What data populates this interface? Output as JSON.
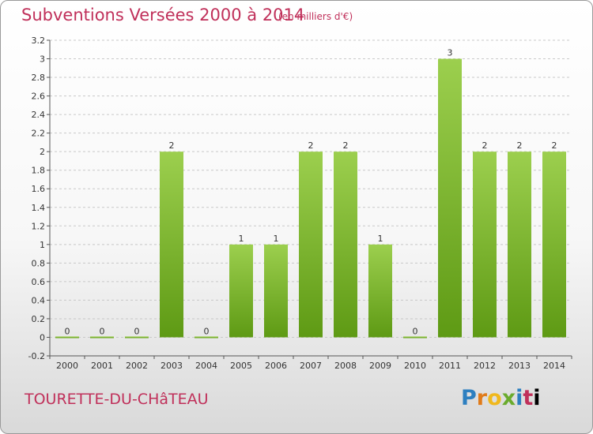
{
  "header": {
    "title": "Subventions Versées 2000 à 2014",
    "unit": "(en milliers d'€)"
  },
  "footer": {
    "commune": "TOURETTE-DU-CHâTEAU",
    "logo": [
      "P",
      "r",
      "o",
      "x",
      "i",
      "t",
      "i"
    ]
  },
  "colors": {
    "bar_top": "#9ccf4e",
    "bar_bottom": "#5e9a14",
    "title": "#c0305a",
    "grid": "#c8c8c8"
  },
  "chart_data": {
    "type": "bar",
    "title": "Subventions Versées 2000 à 2014",
    "categories": [
      "2000",
      "2001",
      "2002",
      "2003",
      "2004",
      "2005",
      "2006",
      "2007",
      "2008",
      "2009",
      "2010",
      "2011",
      "2012",
      "2013",
      "2014"
    ],
    "values": [
      0,
      0,
      0,
      2,
      0,
      1,
      1,
      2,
      2,
      1,
      0,
      3,
      2,
      2,
      2
    ],
    "labels": [
      "0",
      "0",
      "0",
      "2",
      "0",
      "1",
      "1",
      "2",
      "2",
      "1",
      "0",
      "3",
      "2",
      "2",
      "2"
    ],
    "ylim": [
      -0.2,
      3.2
    ],
    "yticks": [
      "-0.2",
      "0",
      "0.2",
      "0.4",
      "0.6",
      "0.8",
      "1",
      "1.2",
      "1.4",
      "1.6",
      "1.8",
      "2",
      "2.2",
      "2.4",
      "2.6",
      "2.8",
      "3",
      "3.2"
    ],
    "grid": "horizontal dashed"
  }
}
